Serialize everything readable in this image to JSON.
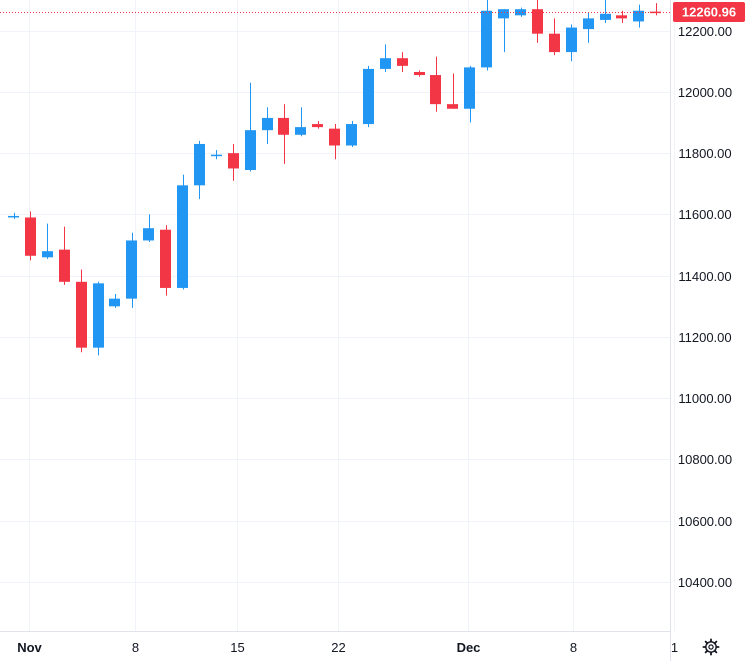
{
  "chart_data": {
    "type": "candlestick",
    "y_ticks": [
      "12200.00",
      "12000.00",
      "11800.00",
      "11600.00",
      "11400.00",
      "11200.00",
      "11000.00",
      "10800.00",
      "10600.00",
      "10400.00"
    ],
    "y_tick_values": [
      12200,
      12000,
      11800,
      11600,
      11400,
      11200,
      11000,
      10800,
      10600,
      10400
    ],
    "ylim": [
      10240,
      12300
    ],
    "x_ticks": [
      {
        "label": "Nov",
        "index": 0.9,
        "bold": true
      },
      {
        "label": "8",
        "index": 7.2,
        "bold": false
      },
      {
        "label": "15",
        "index": 13.2,
        "bold": false
      },
      {
        "label": "22",
        "index": 19.2,
        "bold": false
      },
      {
        "label": "Dec",
        "index": 26.9,
        "bold": true
      },
      {
        "label": "8",
        "index": 33.1,
        "bold": false
      },
      {
        "label": "1",
        "index": 39.1,
        "bold": false
      }
    ],
    "last_price": 12260.96,
    "last_price_label": "12260.96",
    "up_color": "#2196f3",
    "down_color": "#f23645",
    "candles": [
      {
        "o": 11595,
        "h": 11605,
        "l": 11585,
        "c": 11595
      },
      {
        "o": 11590,
        "h": 11610,
        "l": 11450,
        "c": 11465
      },
      {
        "o": 11460,
        "h": 11570,
        "l": 11455,
        "c": 11480
      },
      {
        "o": 11485,
        "h": 11560,
        "l": 11370,
        "c": 11380
      },
      {
        "o": 11380,
        "h": 11420,
        "l": 11150,
        "c": 11165
      },
      {
        "o": 11165,
        "h": 11380,
        "l": 11140,
        "c": 11375
      },
      {
        "o": 11300,
        "h": 11340,
        "l": 11295,
        "c": 11325
      },
      {
        "o": 11325,
        "h": 11540,
        "l": 11295,
        "c": 11515
      },
      {
        "o": 11515,
        "h": 11600,
        "l": 11510,
        "c": 11555
      },
      {
        "o": 11550,
        "h": 11565,
        "l": 11335,
        "c": 11360
      },
      {
        "o": 11360,
        "h": 11730,
        "l": 11355,
        "c": 11695
      },
      {
        "o": 11695,
        "h": 11840,
        "l": 11650,
        "c": 11830
      },
      {
        "o": 11795,
        "h": 11810,
        "l": 11780,
        "c": 11795
      },
      {
        "o": 11800,
        "h": 11830,
        "l": 11710,
        "c": 11750
      },
      {
        "o": 11745,
        "h": 12030,
        "l": 11740,
        "c": 11875
      },
      {
        "o": 11875,
        "h": 11950,
        "l": 11830,
        "c": 11915
      },
      {
        "o": 11915,
        "h": 11960,
        "l": 11765,
        "c": 11860
      },
      {
        "o": 11860,
        "h": 11950,
        "l": 11855,
        "c": 11885
      },
      {
        "o": 11895,
        "h": 11905,
        "l": 11880,
        "c": 11885
      },
      {
        "o": 11880,
        "h": 11895,
        "l": 11780,
        "c": 11825
      },
      {
        "o": 11825,
        "h": 11905,
        "l": 11820,
        "c": 11895
      },
      {
        "o": 11895,
        "h": 12085,
        "l": 11885,
        "c": 12075
      },
      {
        "o": 12075,
        "h": 12155,
        "l": 12065,
        "c": 12110
      },
      {
        "o": 12110,
        "h": 12130,
        "l": 12065,
        "c": 12085
      },
      {
        "o": 12065,
        "h": 12070,
        "l": 12050,
        "c": 12055
      },
      {
        "o": 12055,
        "h": 12115,
        "l": 11935,
        "c": 11960
      },
      {
        "o": 11960,
        "h": 12060,
        "l": 11945,
        "c": 11945
      },
      {
        "o": 11945,
        "h": 12085,
        "l": 11900,
        "c": 12080
      },
      {
        "o": 12080,
        "h": 12300,
        "l": 12070,
        "c": 12265
      },
      {
        "o": 12240,
        "h": 12270,
        "l": 12130,
        "c": 12270
      },
      {
        "o": 12250,
        "h": 12275,
        "l": 12245,
        "c": 12270
      },
      {
        "o": 12270,
        "h": 12320,
        "l": 12160,
        "c": 12190
      },
      {
        "o": 12190,
        "h": 12240,
        "l": 12120,
        "c": 12130
      },
      {
        "o": 12130,
        "h": 12220,
        "l": 12100,
        "c": 12210
      },
      {
        "o": 12205,
        "h": 12260,
        "l": 12160,
        "c": 12240
      },
      {
        "o": 12235,
        "h": 12300,
        "l": 12225,
        "c": 12255
      },
      {
        "o": 12250,
        "h": 12265,
        "l": 12225,
        "c": 12240
      },
      {
        "o": 12230,
        "h": 12285,
        "l": 12210,
        "c": 12265
      },
      {
        "o": 12262,
        "h": 12290,
        "l": 12250,
        "c": 12258
      }
    ]
  },
  "settings_icon": "gear-icon"
}
